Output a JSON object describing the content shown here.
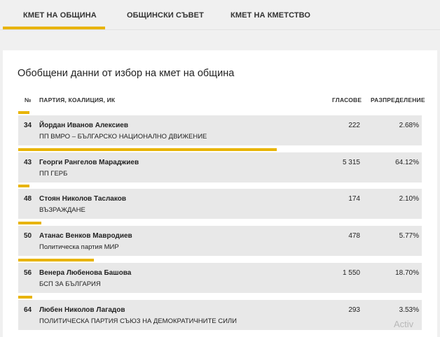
{
  "tabs": [
    {
      "label": "КМЕТ НА ОБЩИНА",
      "active": true
    },
    {
      "label": "ОБЩИНСКИ СЪВЕТ",
      "active": false
    },
    {
      "label": "КМЕТ НА КМЕТСТВО",
      "active": false
    }
  ],
  "colors": {
    "accent": "#e8b400",
    "row_bg": "#e8e8e8",
    "page_bg": "#f0f0f0"
  },
  "panel": {
    "title": "Обобщени данни от избор на кмет на община",
    "headers": {
      "num": "№",
      "party": "ПАРТИЯ, КОАЛИЦИЯ, ИК",
      "votes": "ГЛАСОВЕ",
      "distribution": "РАЗПРЕДЕЛЕНИЕ"
    },
    "rows": [
      {
        "num": "34",
        "candidate": "Йордан Иванов Алексиев",
        "party": "ПП ВМРО – БЪЛГАРСКО НАЦИОНАЛНО ДВИЖЕНИЕ",
        "votes": "222",
        "pct": "2.68%",
        "share": 0.0268
      },
      {
        "num": "43",
        "candidate": "Георги Рангелов Мараджиев",
        "party": "ПП ГЕРБ",
        "votes": "5 315",
        "pct": "64.12%",
        "share": 0.6412
      },
      {
        "num": "48",
        "candidate": "Стоян Николов Таслаков",
        "party": "ВЪЗРАЖДАНЕ",
        "votes": "174",
        "pct": "2.10%",
        "share": 0.021
      },
      {
        "num": "50",
        "candidate": "Атанас Венков Мавродиев",
        "party": "Политическа партия МИР",
        "votes": "478",
        "pct": "5.77%",
        "share": 0.0577
      },
      {
        "num": "56",
        "candidate": "Венера Любенова Башова",
        "party": "БСП ЗА БЪЛГАРИЯ",
        "votes": "1 550",
        "pct": "18.70%",
        "share": 0.187
      },
      {
        "num": "64",
        "candidate": "Любен Николов Лагадов",
        "party": "ПОЛИТИЧЕСКА ПАРТИЯ СЪЮЗ НА ДЕМОКРАТИЧНИТЕ СИЛИ",
        "votes": "293",
        "pct": "3.53%",
        "share": 0.0353
      }
    ]
  },
  "watermark": "Activ"
}
